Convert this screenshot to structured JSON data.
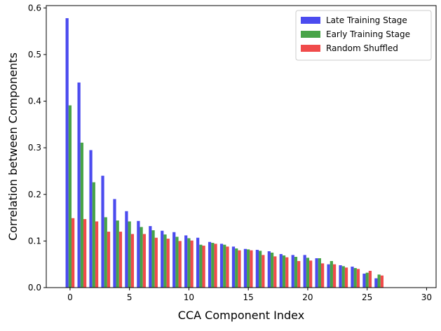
{
  "chart_data": {
    "type": "bar",
    "title": "",
    "xlabel": "CCA Component Index",
    "ylabel": "Correlation between Components",
    "xlim": [
      -2.0,
      30.8
    ],
    "ylim": [
      0,
      0.605
    ],
    "xticks": [
      0,
      5,
      10,
      15,
      20,
      25,
      30
    ],
    "yticks": [
      0.0,
      0.1,
      0.2,
      0.3,
      0.4,
      0.5,
      0.6
    ],
    "x": [
      0,
      1,
      2,
      3,
      4,
      5,
      6,
      7,
      8,
      9,
      10,
      11,
      12,
      13,
      14,
      15,
      16,
      17,
      18,
      19,
      20,
      21,
      22,
      23,
      24,
      25,
      26
    ],
    "bar_width": 0.25,
    "grid": false,
    "legend_position": "top-right",
    "series": [
      {
        "name": "Late Training Stage",
        "color": "#4b4bef",
        "offset": -0.25,
        "values": [
          0.578,
          0.44,
          0.295,
          0.24,
          0.19,
          0.164,
          0.143,
          0.132,
          0.122,
          0.119,
          0.112,
          0.107,
          0.098,
          0.094,
          0.088,
          0.083,
          0.081,
          0.078,
          0.072,
          0.07,
          0.07,
          0.063,
          0.05,
          0.048,
          0.045,
          0.03,
          0.02
        ]
      },
      {
        "name": "Early Training Stage",
        "color": "#48a448",
        "offset": 0,
        "values": [
          0.391,
          0.311,
          0.226,
          0.151,
          0.144,
          0.142,
          0.13,
          0.123,
          0.114,
          0.109,
          0.106,
          0.092,
          0.096,
          0.092,
          0.084,
          0.082,
          0.079,
          0.075,
          0.069,
          0.066,
          0.064,
          0.063,
          0.057,
          0.046,
          0.042,
          0.032,
          0.028
        ]
      },
      {
        "name": "Random Shuffled",
        "color": "#f04b4b",
        "offset": 0.25,
        "values": [
          0.149,
          0.147,
          0.142,
          0.12,
          0.12,
          0.115,
          0.115,
          0.107,
          0.105,
          0.1,
          0.101,
          0.09,
          0.094,
          0.088,
          0.08,
          0.08,
          0.07,
          0.067,
          0.065,
          0.057,
          0.058,
          0.052,
          0.05,
          0.043,
          0.04,
          0.036,
          0.026
        ]
      }
    ]
  }
}
